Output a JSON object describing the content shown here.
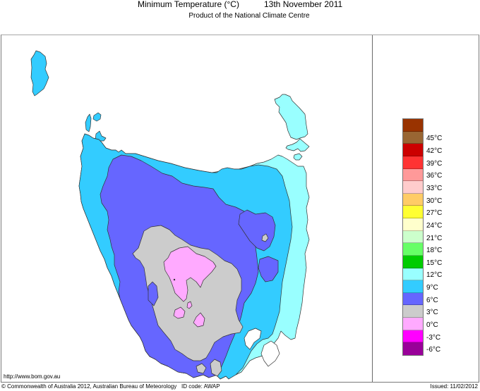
{
  "header": {
    "title": "Minimum Temperature (°C)",
    "date": "13th November 2011",
    "subtitle": "Product of the National Climate Centre"
  },
  "map": {
    "region": "Tasmania",
    "variable": "Minimum Temperature",
    "units": "°C"
  },
  "legend": {
    "swatches": [
      {
        "color": "#993300"
      },
      {
        "color": "#996633",
        "label": "45°C"
      },
      {
        "color": "#cc0000",
        "label": "42°C"
      },
      {
        "color": "#ff3333",
        "label": "39°C"
      },
      {
        "color": "#ff9999",
        "label": "36°C"
      },
      {
        "color": "#ffcccc",
        "label": "33°C"
      },
      {
        "color": "#ffcc66",
        "label": "30°C"
      },
      {
        "color": "#ffff33",
        "label": "27°C"
      },
      {
        "color": "#ffffcc",
        "label": "24°C"
      },
      {
        "color": "#ccffcc",
        "label": "21°C"
      },
      {
        "color": "#66ff66",
        "label": "18°C"
      },
      {
        "color": "#00cc00",
        "label": "15°C"
      },
      {
        "color": "#99ffff",
        "label": "12°C"
      },
      {
        "color": "#33ccff",
        "label": "9°C"
      },
      {
        "color": "#6666ff",
        "label": "6°C"
      },
      {
        "color": "#cccccc",
        "label": "3°C"
      },
      {
        "color": "#ffaaff",
        "label": "0°C"
      },
      {
        "color": "#ff00ff",
        "label": "-3°C"
      },
      {
        "color": "#990099",
        "label": "-6°C"
      }
    ]
  },
  "footer": {
    "url": "http://www.bom.gov.au",
    "copyright": "© Commonwealth of Australia 2012, Australian Bureau of Meteorology",
    "id_code": "ID code: AWAP",
    "issued": "Issued: 11/02/2012"
  }
}
